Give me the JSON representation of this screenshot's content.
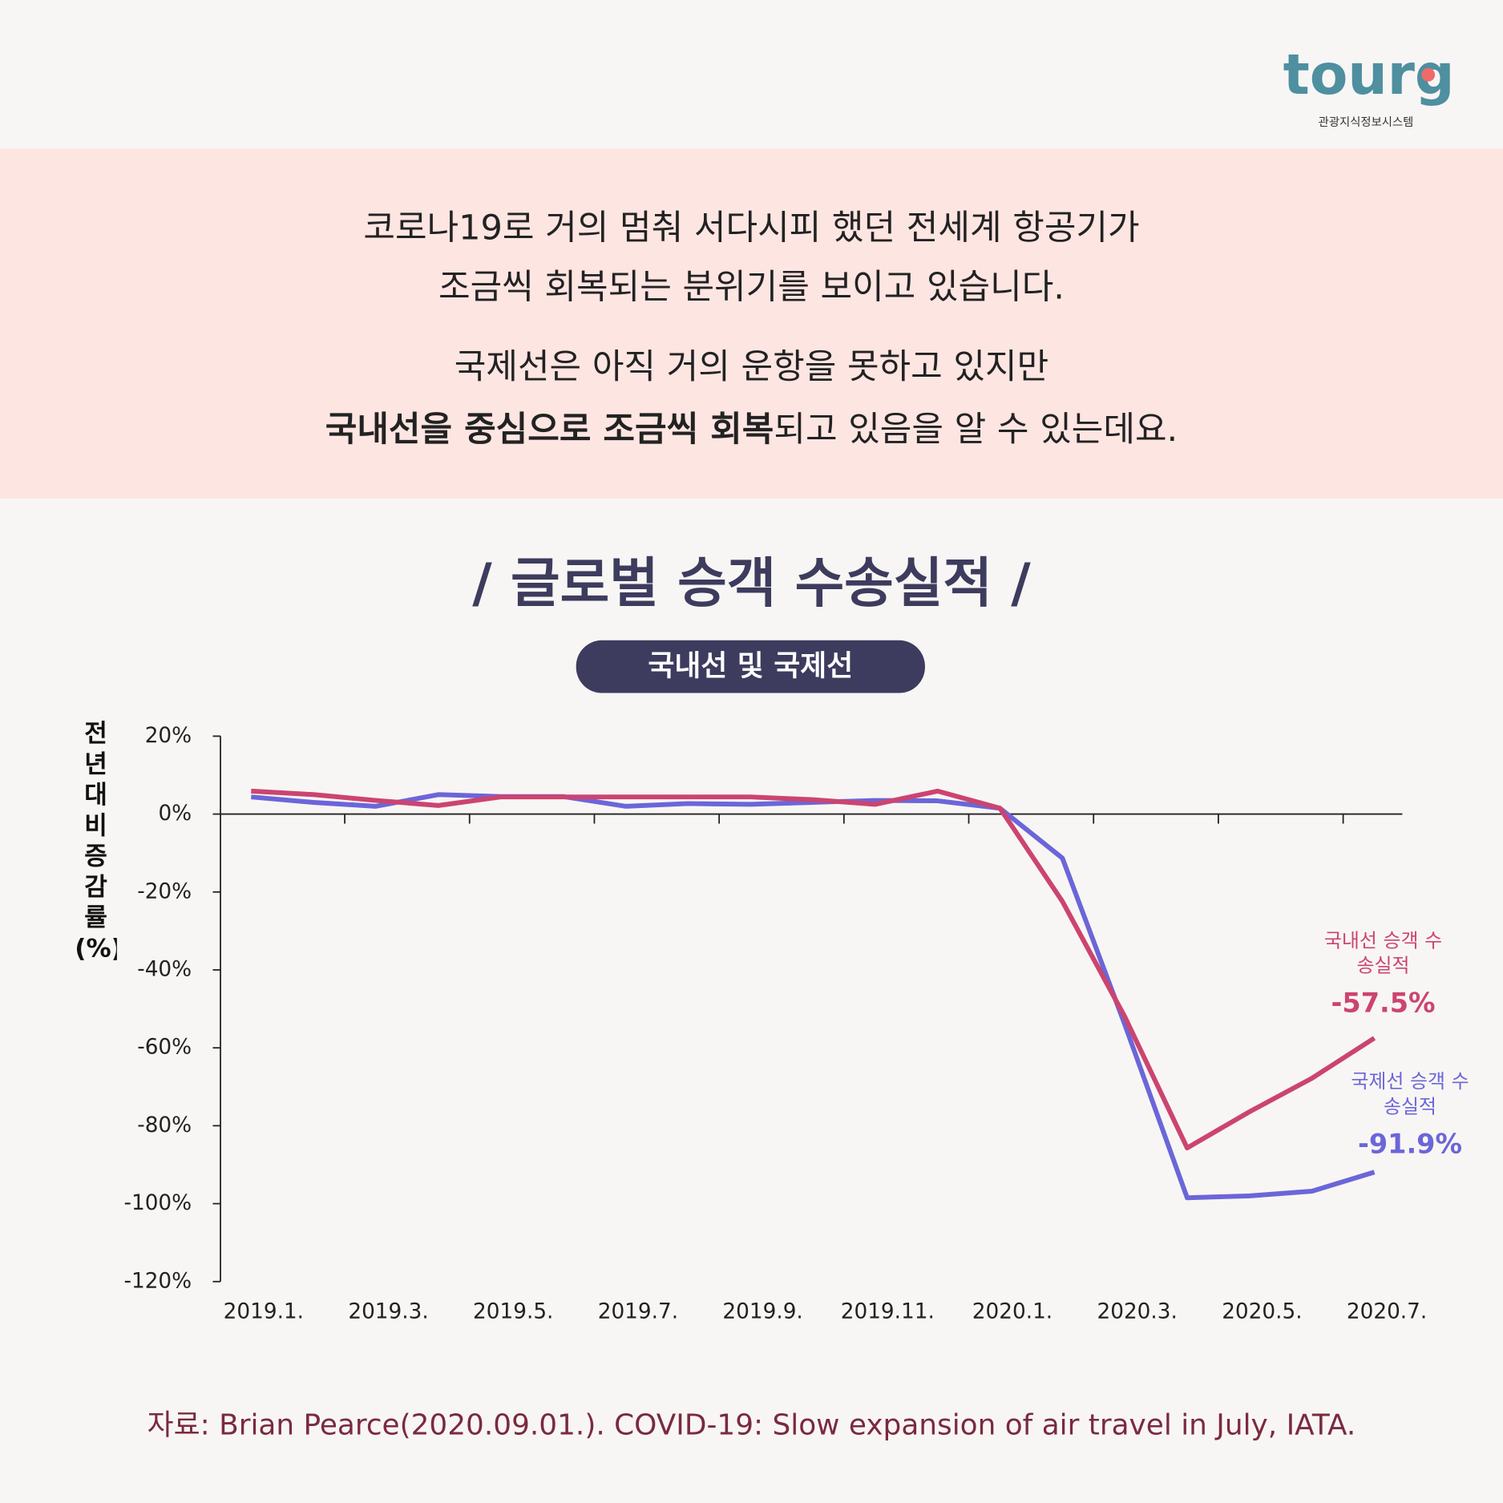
{
  "header": {
    "logo": "tourg",
    "logo_subtitle": "관광지식정보시스템"
  },
  "intro": {
    "line1": "코로나19로 거의 멈춰 서다시피 했던 전세계 항공기가",
    "line2": "조금씩 회복되는 분위기를 보이고 있습니다.",
    "line3": "국제선은 아직 거의 운항을 못하고 있지만",
    "line4_bold": "국내선을 중심으로 조금씩 회복",
    "line4_rest": "되고 있음을 알 수 있는데요."
  },
  "chart_data": {
    "type": "line",
    "title": "/ 글로벌 승객 수송실적 /",
    "subtitle": "국내선 및 국제선",
    "y_label": "전년대비 증감률 (%)",
    "categories": [
      "2019.1.",
      null,
      "2019.3.",
      null,
      "2019.5.",
      null,
      "2019.7.",
      null,
      "2019.9.",
      null,
      "2019.11.",
      null,
      "2020.1.",
      null,
      "2020.3.",
      null,
      "2020.5.",
      null,
      "2020.7."
    ],
    "series": [
      {
        "name": "국내선 승객 수송실적",
        "color": "#cc4470",
        "values": [
          5.9,
          5,
          3.5,
          2.2,
          4.4,
          4.4,
          4.4,
          4.4,
          4.4,
          3.7,
          2.5,
          5.9,
          1.5,
          -22.4,
          -52,
          -85.7,
          -76.4,
          -67.8,
          -57.5
        ],
        "value_labels": [
          null,
          null,
          null,
          null,
          null,
          null,
          null,
          null,
          null,
          null,
          null,
          null,
          null,
          null,
          null,
          null,
          null,
          null,
          "-57.5%"
        ]
      },
      {
        "name": "국제선 승객 수송실적",
        "color": "#6b66d9",
        "values": [
          4.4,
          3,
          2,
          5,
          4.5,
          4.5,
          2,
          2.7,
          2.5,
          3,
          3.5,
          3.4,
          1.5,
          -11.3,
          -54,
          -98.5,
          -98,
          -96.8,
          -91.9
        ],
        "value_labels": [
          null,
          null,
          null,
          null,
          null,
          null,
          null,
          null,
          null,
          null,
          null,
          null,
          null,
          null,
          null,
          null,
          null,
          null,
          "-91.9%"
        ]
      }
    ],
    "ylim": [
      -120,
      20
    ],
    "yticks": [
      {
        "value": 20,
        "label": "20%"
      },
      {
        "value": 0,
        "label": "0%"
      },
      {
        "value": -20,
        "label": "-20%"
      },
      {
        "value": -40,
        "label": "-40%"
      },
      {
        "value": -60,
        "label": "-60%"
      },
      {
        "value": -80,
        "label": "-80%"
      },
      {
        "value": -100,
        "label": "-100%"
      },
      {
        "value": -120,
        "label": "-120%"
      }
    ],
    "source": "자료: Brian Pearce(2020.09.01.). COVID-19: Slow expansion of air travel in July, IATA."
  }
}
